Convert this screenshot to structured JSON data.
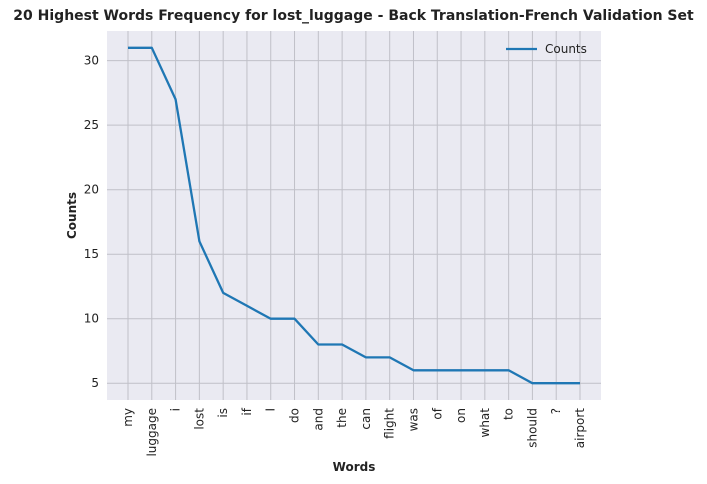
{
  "chart_data": {
    "type": "line",
    "title": "20 Highest Words Frequency for lost_luggage - Back Translation-French Validation Set",
    "xlabel": "Words",
    "ylabel": "Counts",
    "categories": [
      "my",
      "luggage",
      "i",
      "lost",
      "is",
      "if",
      "I",
      "do",
      "and",
      "the",
      "can",
      "flight",
      "was",
      "of",
      "on",
      "what",
      "to",
      "should",
      "?",
      "airport"
    ],
    "series": [
      {
        "name": "Counts",
        "values": [
          31,
          31,
          27,
          16,
          12,
          11,
          10,
          10,
          8,
          8,
          7,
          7,
          6,
          6,
          6,
          6,
          6,
          5,
          5,
          5
        ],
        "color": "#1f77b4"
      }
    ],
    "ylim": [
      3.7,
      32.3
    ],
    "yticks": [
      5,
      10,
      15,
      20,
      25,
      30
    ],
    "grid": true,
    "legend_position": "top-right",
    "background": "#eaeaf2",
    "grid_color": "#c0c0c8"
  }
}
